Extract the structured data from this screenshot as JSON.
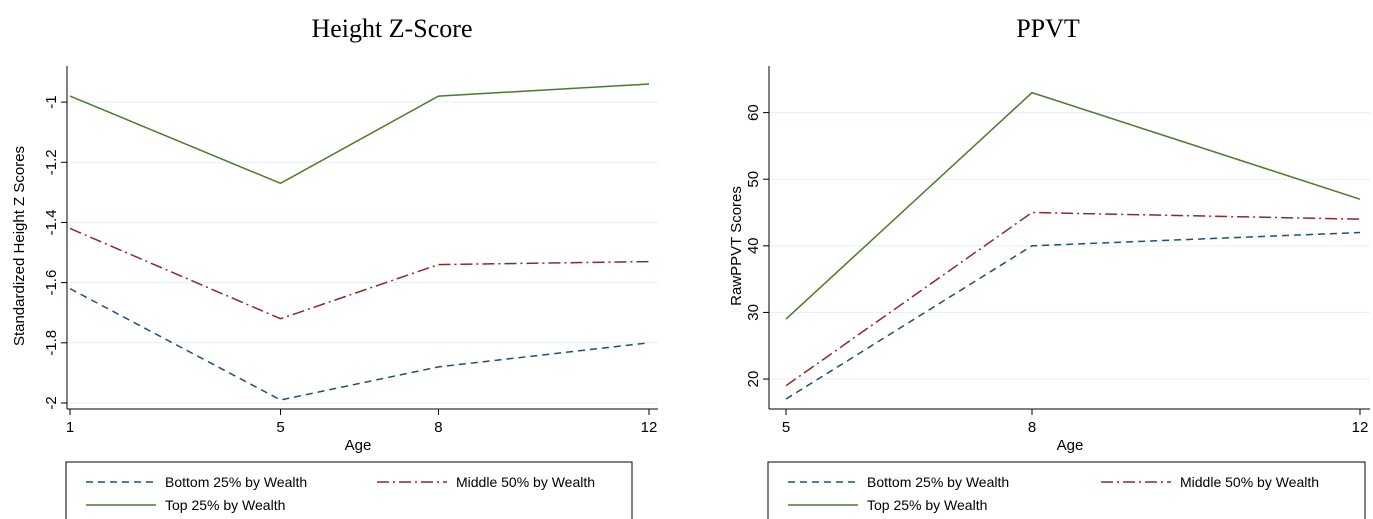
{
  "chart_data": [
    {
      "type": "line",
      "title": "Height Z-Score",
      "xlabel": "Age",
      "ylabel": "Standardized Height Z Scores",
      "x": [
        1,
        5,
        8,
        12
      ],
      "x_ticks": [
        "1",
        "5",
        "8",
        "12"
      ],
      "xlim": [
        1,
        12
      ],
      "ylim": [
        -2.02,
        -0.88
      ],
      "y_ticks": [
        -2,
        -1.8,
        -1.6,
        -1.4,
        -1.2,
        -1
      ],
      "y_tick_labels": [
        "-2",
        "-1.8",
        "-1.6",
        "-1.4",
        "-1.2",
        "-1"
      ],
      "grid": true,
      "legend_placement": "bottom",
      "series": [
        {
          "name": "Bottom 25% by Wealth",
          "values": [
            -1.62,
            -1.99,
            -1.88,
            -1.8
          ],
          "color": "#1f4e79",
          "dash": "dash"
        },
        {
          "name": "Middle 50% by Wealth",
          "values": [
            -1.42,
            -1.72,
            -1.54,
            -1.53
          ],
          "color": "#8b2a2a",
          "dash": "dashdot"
        },
        {
          "name": "Top 25% by Wealth",
          "values": [
            -0.98,
            -1.27,
            -0.98,
            -0.94
          ],
          "color": "#4d7a2a",
          "dash": "solid"
        }
      ]
    },
    {
      "type": "line",
      "title": "PPVT",
      "xlabel": "Age",
      "ylabel": "RawPPVT Scores",
      "x": [
        5,
        8,
        12
      ],
      "x_ticks": [
        "5",
        "8",
        "12"
      ],
      "xlim": [
        5,
        12
      ],
      "ylim": [
        15.5,
        67
      ],
      "y_ticks": [
        20,
        30,
        40,
        50,
        60
      ],
      "y_tick_labels": [
        "20",
        "30",
        "40",
        "50",
        "60"
      ],
      "grid": true,
      "legend_placement": "bottom",
      "series": [
        {
          "name": "Bottom 25% by Wealth",
          "values": [
            17,
            40,
            42
          ],
          "color": "#1f4e79",
          "dash": "dash"
        },
        {
          "name": "Middle 50% by Wealth",
          "values": [
            19,
            45,
            44
          ],
          "color": "#8b2a2a",
          "dash": "dashdot"
        },
        {
          "name": "Top 25% by Wealth",
          "values": [
            29,
            63,
            47
          ],
          "color": "#4d7a2a",
          "dash": "solid"
        }
      ]
    }
  ]
}
